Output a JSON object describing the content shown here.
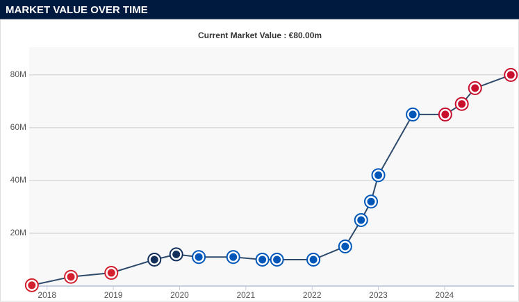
{
  "chart_data": {
    "type": "line",
    "title": "MARKET VALUE OVER TIME",
    "subtitle": "Current Market Value : €80.00m",
    "x": [
      2017.77,
      2018.36,
      2018.97,
      2019.62,
      2019.95,
      2020.29,
      2020.81,
      2021.25,
      2021.47,
      2022.02,
      2022.5,
      2022.74,
      2022.89,
      2023.0,
      2023.52,
      2024.01,
      2024.26,
      2024.46,
      2025.0
    ],
    "values": [
      0.3,
      3.5,
      5,
      10,
      12,
      11,
      11,
      10,
      10,
      10,
      15,
      25,
      32,
      42,
      65,
      65,
      69,
      75,
      80
    ],
    "color": "#2d4a6b",
    "marker_colors": [
      "#d3202f",
      "#d3202f",
      "#d3202f",
      "#13305b",
      "#13305b",
      "#0057b8",
      "#0057b8",
      "#0057b8",
      "#0057b8",
      "#0057b8",
      "#0057b8",
      "#0057b8",
      "#0057b8",
      "#0057b8",
      "#0057b8",
      "#c8102e",
      "#c8102e",
      "#c8102e",
      "#c8102e"
    ],
    "xlim": [
      2017.73,
      2025.05
    ],
    "ylim": [
      0,
      90.5
    ],
    "xticks": [
      2018,
      2019,
      2020,
      2021,
      2022,
      2023,
      2024
    ],
    "yticks": [
      {
        "value": 20,
        "label": "20M"
      },
      {
        "value": 40,
        "label": "40M"
      },
      {
        "value": 60,
        "label": "60M"
      },
      {
        "value": 80,
        "label": "80M"
      }
    ],
    "grid": true
  }
}
